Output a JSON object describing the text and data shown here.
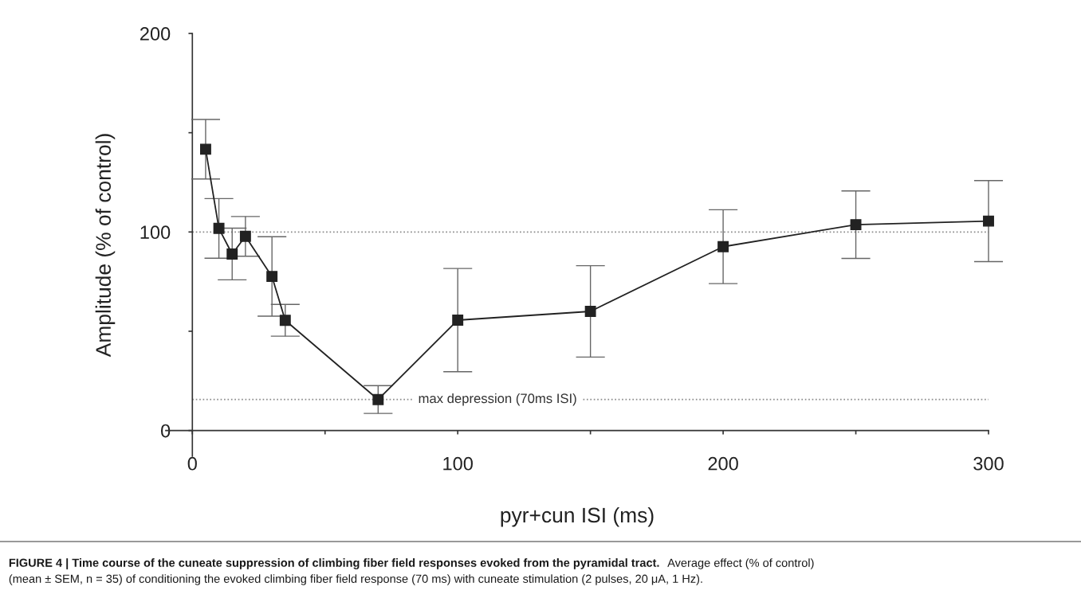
{
  "chart_data": {
    "type": "line",
    "title": "FIGURE 4 | Time course of the cuneate suppression of climbing fiber field responses evoked from the pyramidal tract.",
    "xlabel": "pyr+cun ISI (ms)",
    "ylabel": "Amplitude (% of control)",
    "x": [
      5,
      10,
      15,
      20,
      30,
      35,
      70,
      100,
      150,
      200,
      250,
      300
    ],
    "series": [
      {
        "color": "#222222",
        "values": [
          141.7,
          101.8,
          88.9,
          97.8,
          77.6,
          55.5,
          15.6,
          55.6,
          60.0,
          92.6,
          103.7,
          105.5
        ],
        "errors": [
          15,
          15,
          13,
          10,
          20,
          8,
          7,
          26,
          23,
          18.6,
          17,
          20.4
        ]
      }
    ],
    "marker": "square",
    "line_style": "solid",
    "grid": false,
    "legend": false,
    "xlim": [
      -10,
      300
    ],
    "ylim": [
      -13,
      200
    ],
    "xticks": [
      0,
      {
        "value": 50,
        "label": null
      },
      100,
      {
        "value": 150,
        "label": null
      },
      200,
      {
        "value": 250,
        "label": null
      },
      300
    ],
    "yticks": [
      0,
      {
        "value": 50,
        "label": null
      },
      100,
      {
        "value": 150,
        "label": null
      },
      200
    ],
    "ref_lines": [
      {
        "axis": "y",
        "value": 100,
        "label": null,
        "color": "#8a8a8a",
        "line_style": "dotted"
      },
      {
        "axis": "y",
        "value": 15.6,
        "label": "max depression (70ms ISI)",
        "color": "#8a8a8a",
        "line_style": "dotted"
      }
    ],
    "annotations": [
      "Average effect (% of control)",
      "(mean ± SEM, n = 35) of conditioning the evoked climbing fiber field response (70 ms) with cuneate stimulation (2 pulses, 20 μA, 1 Hz)."
    ]
  }
}
